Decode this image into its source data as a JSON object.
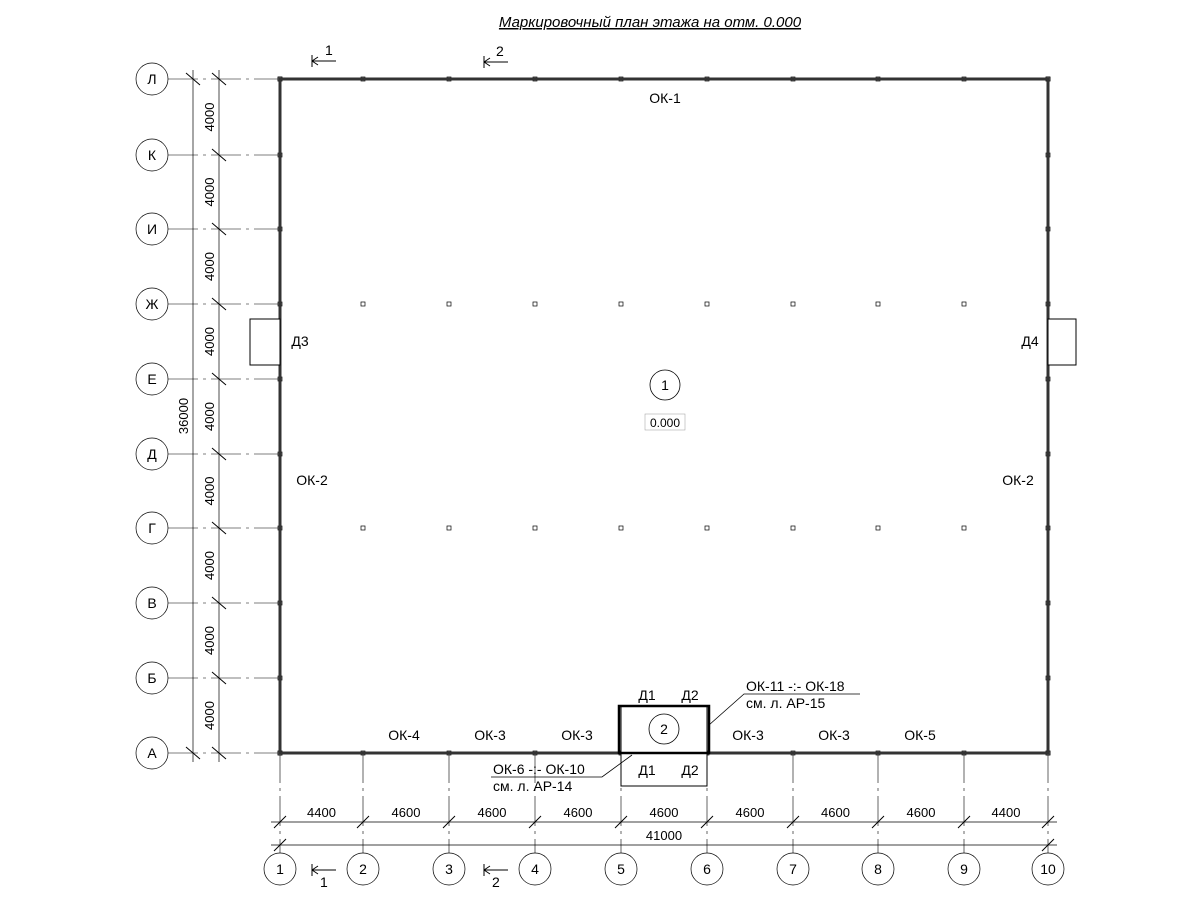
{
  "title": "Маркировочный план этажа на отм. 0.000",
  "row_axes": [
    "Л",
    "К",
    "И",
    "Ж",
    "Е",
    "Д",
    "Г",
    "В",
    "Б",
    "А"
  ],
  "col_axes": [
    "1",
    "2",
    "3",
    "4",
    "5",
    "6",
    "7",
    "8",
    "9",
    "10"
  ],
  "row_dims": [
    "4000",
    "4000",
    "4000",
    "4000",
    "4000",
    "4000",
    "4000",
    "4000",
    "4000"
  ],
  "row_total": "36000",
  "col_dims": [
    "4400",
    "4600",
    "4600",
    "4600",
    "4600",
    "4600",
    "4600",
    "4600",
    "4400"
  ],
  "col_total": "41000",
  "section_marks": {
    "s1": "1",
    "s2": "2"
  },
  "room1": {
    "number": "1",
    "level": "0.000"
  },
  "room2": {
    "number": "2"
  },
  "labels": {
    "ok1": "ОК-1",
    "ok2_left": "ОК-2",
    "ok2_right": "ОК-2",
    "ok4": "ОК-4",
    "ok3_a": "ОК-3",
    "ok3_b": "ОК-3",
    "ok3_c": "ОК-3",
    "ok3_d": "ОК-3",
    "ok5": "ОК-5",
    "d3": "Д3",
    "d4": "Д4",
    "d1_top": "Д1",
    "d2_top": "Д2",
    "d1_bot": "Д1",
    "d2_bot": "Д2",
    "callout_top_1": "ОК-11 -:- ОК-18",
    "callout_top_2": "см. л. АР-15",
    "callout_bot_1": "ОК-6 -:- ОК-10",
    "callout_bot_2": "см. л. АР-14"
  }
}
